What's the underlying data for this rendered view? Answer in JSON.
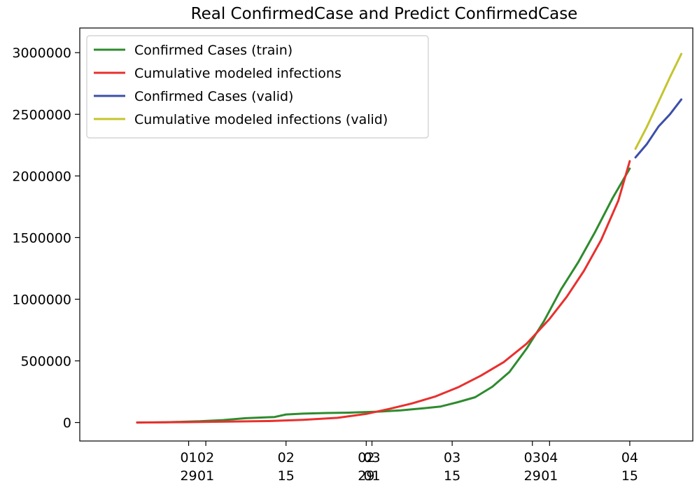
{
  "chart_data": {
    "type": "line",
    "title": "Real ConfirmedCase and Predict ConfirmedCase",
    "xlabel": "",
    "ylabel": "",
    "x_axis_type": "date",
    "xlim": [
      "2020-01-10",
      "2020-04-26"
    ],
    "ylim": [
      -150000,
      3200000
    ],
    "yticks": [
      0,
      500000,
      1000000,
      1500000,
      2000000,
      2500000,
      3000000
    ],
    "ytick_labels": [
      "0",
      "500000",
      "1000000",
      "1500000",
      "2000000",
      "2500000",
      "3000000"
    ],
    "xticks": [
      {
        "date": "2020-01-29",
        "line1": "01",
        "line2": "29"
      },
      {
        "date": "2020-02-01",
        "line1": "02",
        "line2": "01"
      },
      {
        "date": "2020-02-15",
        "line1": "02",
        "line2": "15"
      },
      {
        "date": "2020-02-29",
        "line1": "02",
        "line2": "29"
      },
      {
        "date": "2020-03-01",
        "line1": "03",
        "line2": "01"
      },
      {
        "date": "2020-03-15",
        "line1": "03",
        "line2": "15"
      },
      {
        "date": "2020-03-29",
        "line1": "03",
        "line2": "29"
      },
      {
        "date": "2020-04-01",
        "line1": "04",
        "line2": "01"
      },
      {
        "date": "2020-04-15",
        "line1": "04",
        "line2": "15"
      }
    ],
    "legend_position": "top-left",
    "grid": false,
    "series": [
      {
        "name": "Confirmed Cases (train)",
        "color": "#2e8b2e",
        "points": [
          [
            "2020-01-20",
            0
          ],
          [
            "2020-01-25",
            2000
          ],
          [
            "2020-01-31",
            10000
          ],
          [
            "2020-02-04",
            20000
          ],
          [
            "2020-02-08",
            35000
          ],
          [
            "2020-02-13",
            45000
          ],
          [
            "2020-02-15",
            65000
          ],
          [
            "2020-02-18",
            72000
          ],
          [
            "2020-02-22",
            77000
          ],
          [
            "2020-02-26",
            80000
          ],
          [
            "2020-03-02",
            88000
          ],
          [
            "2020-03-06",
            98000
          ],
          [
            "2020-03-10",
            115000
          ],
          [
            "2020-03-13",
            130000
          ],
          [
            "2020-03-16",
            165000
          ],
          [
            "2020-03-19",
            205000
          ],
          [
            "2020-03-22",
            290000
          ],
          [
            "2020-03-25",
            410000
          ],
          [
            "2020-03-28",
            600000
          ],
          [
            "2020-03-31",
            820000
          ],
          [
            "2020-04-03",
            1080000
          ],
          [
            "2020-04-06",
            1300000
          ],
          [
            "2020-04-09",
            1550000
          ],
          [
            "2020-04-12",
            1820000
          ],
          [
            "2020-04-15",
            2060000
          ]
        ]
      },
      {
        "name": "Cumulative modeled infections",
        "color": "#e8302e",
        "points": [
          [
            "2020-01-20",
            0
          ],
          [
            "2020-01-28",
            3000
          ],
          [
            "2020-02-05",
            8000
          ],
          [
            "2020-02-12",
            12000
          ],
          [
            "2020-02-18",
            22000
          ],
          [
            "2020-02-24",
            38000
          ],
          [
            "2020-02-29",
            70000
          ],
          [
            "2020-03-04",
            110000
          ],
          [
            "2020-03-08",
            155000
          ],
          [
            "2020-03-12",
            210000
          ],
          [
            "2020-03-16",
            285000
          ],
          [
            "2020-03-20",
            380000
          ],
          [
            "2020-03-24",
            490000
          ],
          [
            "2020-03-28",
            640000
          ],
          [
            "2020-04-01",
            840000
          ],
          [
            "2020-04-04",
            1020000
          ],
          [
            "2020-04-07",
            1230000
          ],
          [
            "2020-04-10",
            1480000
          ],
          [
            "2020-04-13",
            1800000
          ],
          [
            "2020-04-15",
            2120000
          ]
        ]
      },
      {
        "name": "Confirmed Cases (valid)",
        "color": "#3d4fa8",
        "points": [
          [
            "2020-04-16",
            2150000
          ],
          [
            "2020-04-18",
            2260000
          ],
          [
            "2020-04-20",
            2400000
          ],
          [
            "2020-04-22",
            2500000
          ],
          [
            "2020-04-24",
            2620000
          ]
        ]
      },
      {
        "name": "Cumulative modeled infections (valid)",
        "color": "#c4c42e",
        "points": [
          [
            "2020-04-16",
            2220000
          ],
          [
            "2020-04-18",
            2400000
          ],
          [
            "2020-04-20",
            2600000
          ],
          [
            "2020-04-22",
            2800000
          ],
          [
            "2020-04-24",
            2990000
          ]
        ]
      }
    ]
  }
}
